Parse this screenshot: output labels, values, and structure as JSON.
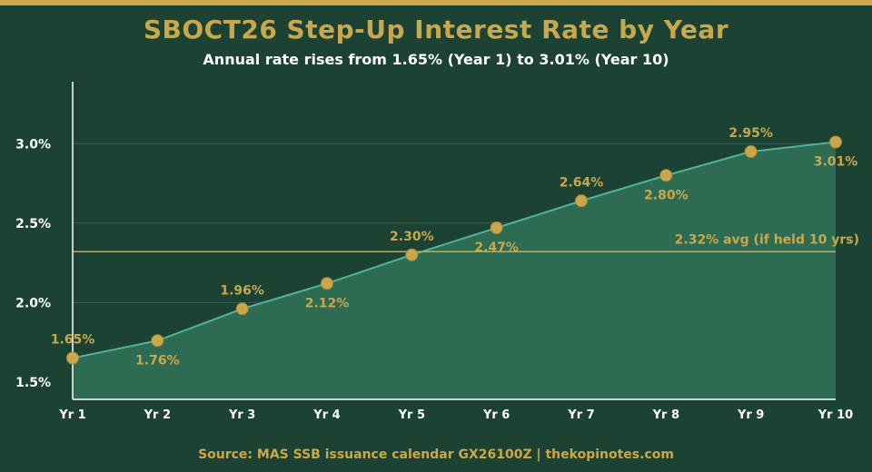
{
  "header": {
    "title": "SBOCT26 Step-Up Interest Rate by Year",
    "subtitle": "Annual rate rises from 1.65% (Year 1) to 3.01% (Year 10)"
  },
  "footer": {
    "source": "Source: MAS SSB issuance calendar GX26100Z  |  thekopinotes.com"
  },
  "colors": {
    "background": "#1b4232",
    "accent": "#c9a84c",
    "area_fill": "#2e6b53",
    "line": "#4fb39a",
    "text": "#ffffff",
    "grid": "#3d6a57"
  },
  "chart_data": {
    "type": "area",
    "title": "SBOCT26 Step-Up Interest Rate by Year",
    "subtitle": "Annual rate rises from 1.65% (Year 1) to 3.01% (Year 10)",
    "xlabel": "",
    "ylabel": "",
    "categories": [
      "Yr 1",
      "Yr 2",
      "Yr 3",
      "Yr 4",
      "Yr 5",
      "Yr 6",
      "Yr 7",
      "Yr 8",
      "Yr 9",
      "Yr 10"
    ],
    "values": [
      1.65,
      1.76,
      1.96,
      2.12,
      2.3,
      2.47,
      2.64,
      2.8,
      2.95,
      3.01
    ],
    "data_labels": [
      "1.65%",
      "1.76%",
      "1.96%",
      "2.12%",
      "2.30%",
      "2.47%",
      "2.64%",
      "2.80%",
      "2.95%",
      "3.01%"
    ],
    "ylim": [
      1.39,
      3.39
    ],
    "yticks": [
      1.5,
      2.0,
      2.5,
      3.0
    ],
    "ytick_labels": [
      "1.5%",
      "2.0%",
      "2.5%",
      "3.0%"
    ],
    "grid": true,
    "reference_line": {
      "value": 2.32,
      "label": "2.32% avg (if held 10 yrs)"
    }
  }
}
